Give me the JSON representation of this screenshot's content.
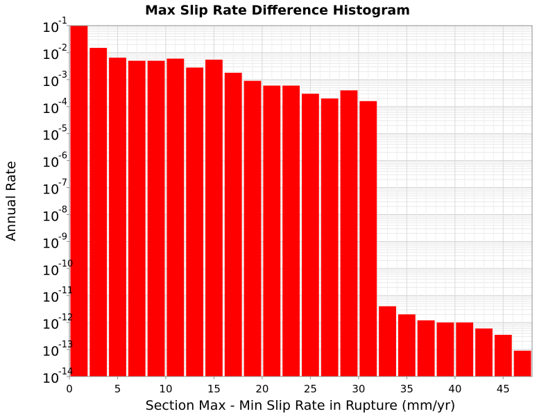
{
  "chart_data": {
    "type": "bar",
    "title": "Max Slip Rate Difference Histogram",
    "xlabel": "Section Max - Min Slip Rate in Rupture (mm/yr)",
    "ylabel": "Annual Rate",
    "xlim": [
      0,
      48
    ],
    "ylim": [
      1e-14,
      0.1
    ],
    "yscale": "log",
    "grid": true,
    "bar_color": "#ff0000",
    "bin_width": 2,
    "x": [
      1,
      3,
      5,
      7,
      9,
      11,
      13,
      15,
      17,
      19,
      21,
      23,
      25,
      27,
      29,
      31,
      33,
      35,
      37,
      39,
      41,
      43,
      45,
      47
    ],
    "values": [
      0.1,
      0.015,
      0.0065,
      0.005,
      0.005,
      0.006,
      0.0028,
      0.0055,
      0.0018,
      0.0009,
      0.0006,
      0.0006,
      0.0003,
      0.0002,
      0.0004,
      0.00016,
      4e-12,
      2e-12,
      1.2e-12,
      1e-12,
      1e-12,
      6e-13,
      3.5e-13,
      9e-14
    ],
    "x_ticks": [
      0,
      5,
      10,
      15,
      20,
      25,
      30,
      35,
      40,
      45
    ],
    "y_ticks": [
      {
        "base": "10",
        "exp": "-1",
        "value": 0.1
      },
      {
        "base": "10",
        "exp": "-2",
        "value": 0.01
      },
      {
        "base": "10",
        "exp": "-3",
        "value": 0.001
      },
      {
        "base": "10",
        "exp": "-4",
        "value": 0.0001
      },
      {
        "base": "10",
        "exp": "-5",
        "value": 1e-05
      },
      {
        "base": "10",
        "exp": "-6",
        "value": 1e-06
      },
      {
        "base": "10",
        "exp": "-7",
        "value": 1e-07
      },
      {
        "base": "10",
        "exp": "-8",
        "value": 1e-08
      },
      {
        "base": "10",
        "exp": "-9",
        "value": 1e-09
      },
      {
        "base": "10",
        "exp": "-10",
        "value": 1e-10
      },
      {
        "base": "10",
        "exp": "-11",
        "value": 1e-11
      },
      {
        "base": "10",
        "exp": "-12",
        "value": 1e-12
      },
      {
        "base": "10",
        "exp": "-13",
        "value": 1e-13
      },
      {
        "base": "10",
        "exp": "-14",
        "value": 1e-14
      }
    ]
  }
}
